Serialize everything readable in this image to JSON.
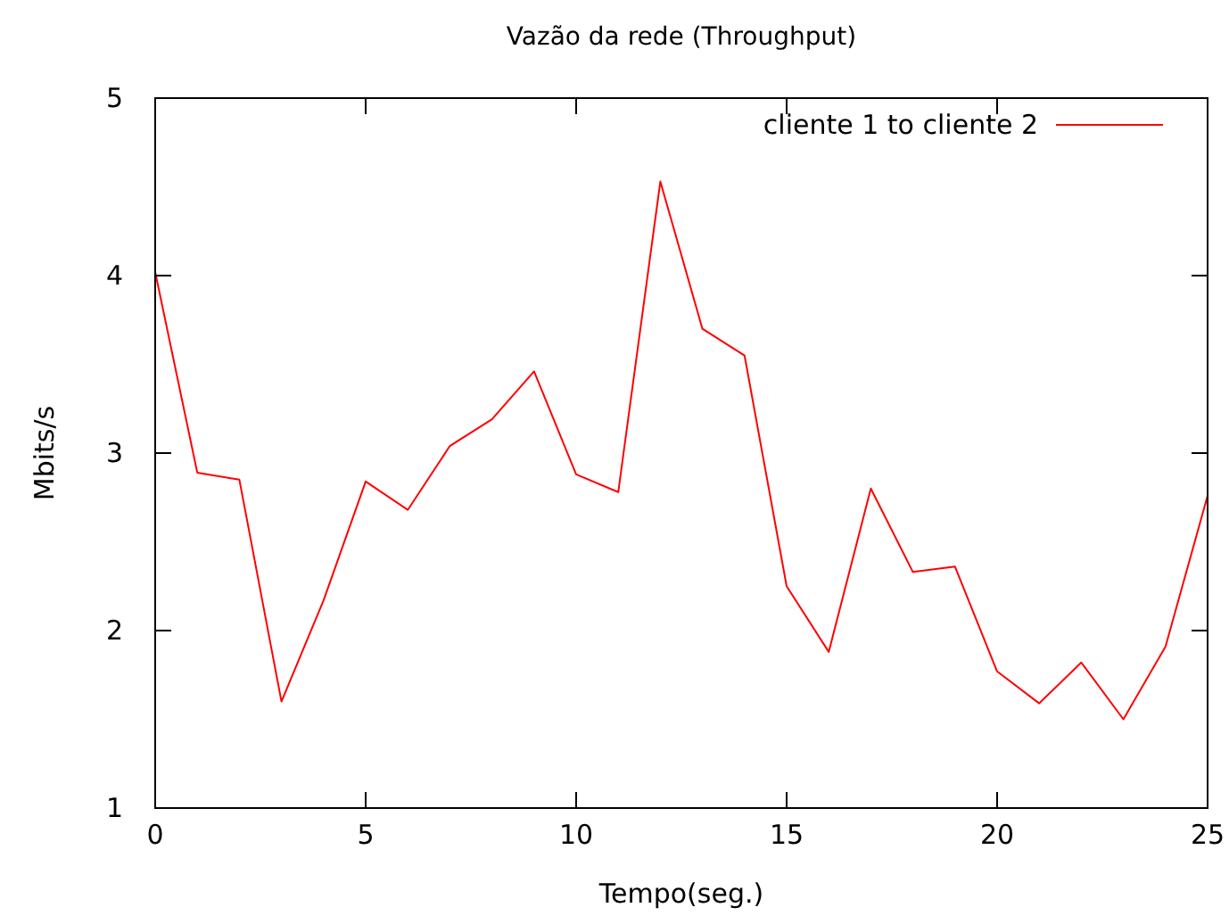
{
  "chart_data": {
    "type": "line",
    "title": "Vazão da rede (Throughput)",
    "xlabel": "Tempo(seg.)",
    "ylabel": "Mbits/s",
    "x": [
      0,
      1,
      2,
      3,
      4,
      5,
      6,
      7,
      8,
      9,
      10,
      11,
      12,
      13,
      14,
      15,
      16,
      17,
      18,
      19,
      20,
      21,
      22,
      23,
      24,
      25
    ],
    "series": [
      {
        "name": "cliente 1 to cliente 2",
        "color": "#ff0000",
        "values": [
          4.02,
          2.89,
          2.85,
          1.6,
          2.17,
          2.84,
          2.68,
          3.04,
          3.19,
          3.46,
          2.88,
          2.78,
          4.53,
          3.7,
          3.55,
          2.25,
          1.88,
          2.8,
          2.33,
          2.36,
          1.77,
          1.59,
          1.82,
          1.5,
          1.91,
          2.76
        ]
      }
    ],
    "xlim": [
      0,
      25
    ],
    "xticks": [
      0,
      5,
      10,
      15,
      20,
      25
    ],
    "ylim": [
      1,
      5
    ],
    "yticks": [
      1,
      2,
      3,
      4,
      5
    ],
    "grid": false,
    "legend": "top right",
    "marker": "none",
    "line_style": "solid"
  }
}
